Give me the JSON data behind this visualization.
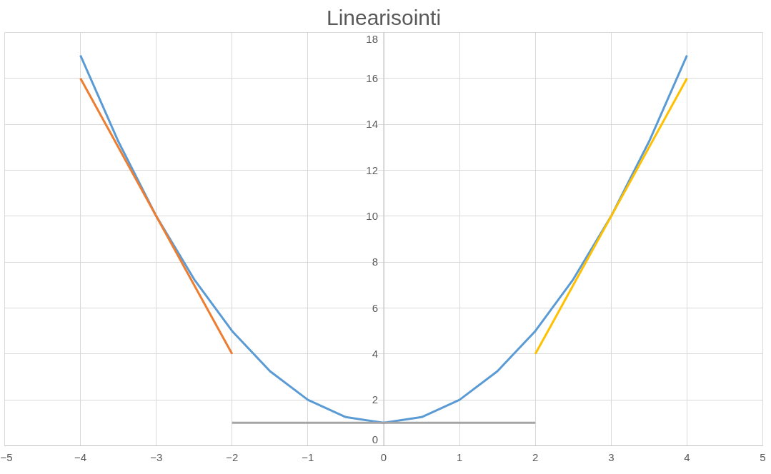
{
  "chart_data": {
    "type": "line",
    "title": "Linearisointi",
    "series": [
      {
        "color": "#5b9bd5",
        "x": [
          -4,
          -3.5,
          -3,
          -2.5,
          -2,
          -1.5,
          -1,
          -0.5,
          0,
          0.5,
          1,
          1.5,
          2,
          2.5,
          3,
          3.5,
          4
        ],
        "values": [
          17,
          13.25,
          10,
          7.25,
          5,
          3.25,
          2,
          1.25,
          1,
          1.25,
          2,
          3.25,
          5,
          7.25,
          10,
          13.25,
          17
        ]
      },
      {
        "color": "#ed7d31",
        "x": [
          -4,
          -2
        ],
        "values": [
          16,
          4
        ]
      },
      {
        "color": "#a5a5a5",
        "x": [
          -2,
          2
        ],
        "values": [
          1,
          1
        ]
      },
      {
        "color": "#ffc000",
        "x": [
          2,
          4
        ],
        "values": [
          4,
          16
        ]
      }
    ],
    "xlim": [
      -5,
      5
    ],
    "ylim": [
      0,
      18
    ],
    "xticks": [
      -5,
      -4,
      -3,
      -2,
      -1,
      0,
      1,
      2,
      3,
      4,
      5
    ],
    "yticks": [
      0,
      2,
      4,
      6,
      8,
      10,
      12,
      14,
      16,
      18
    ],
    "grid": true,
    "marker": "none",
    "line_style": "solid"
  }
}
